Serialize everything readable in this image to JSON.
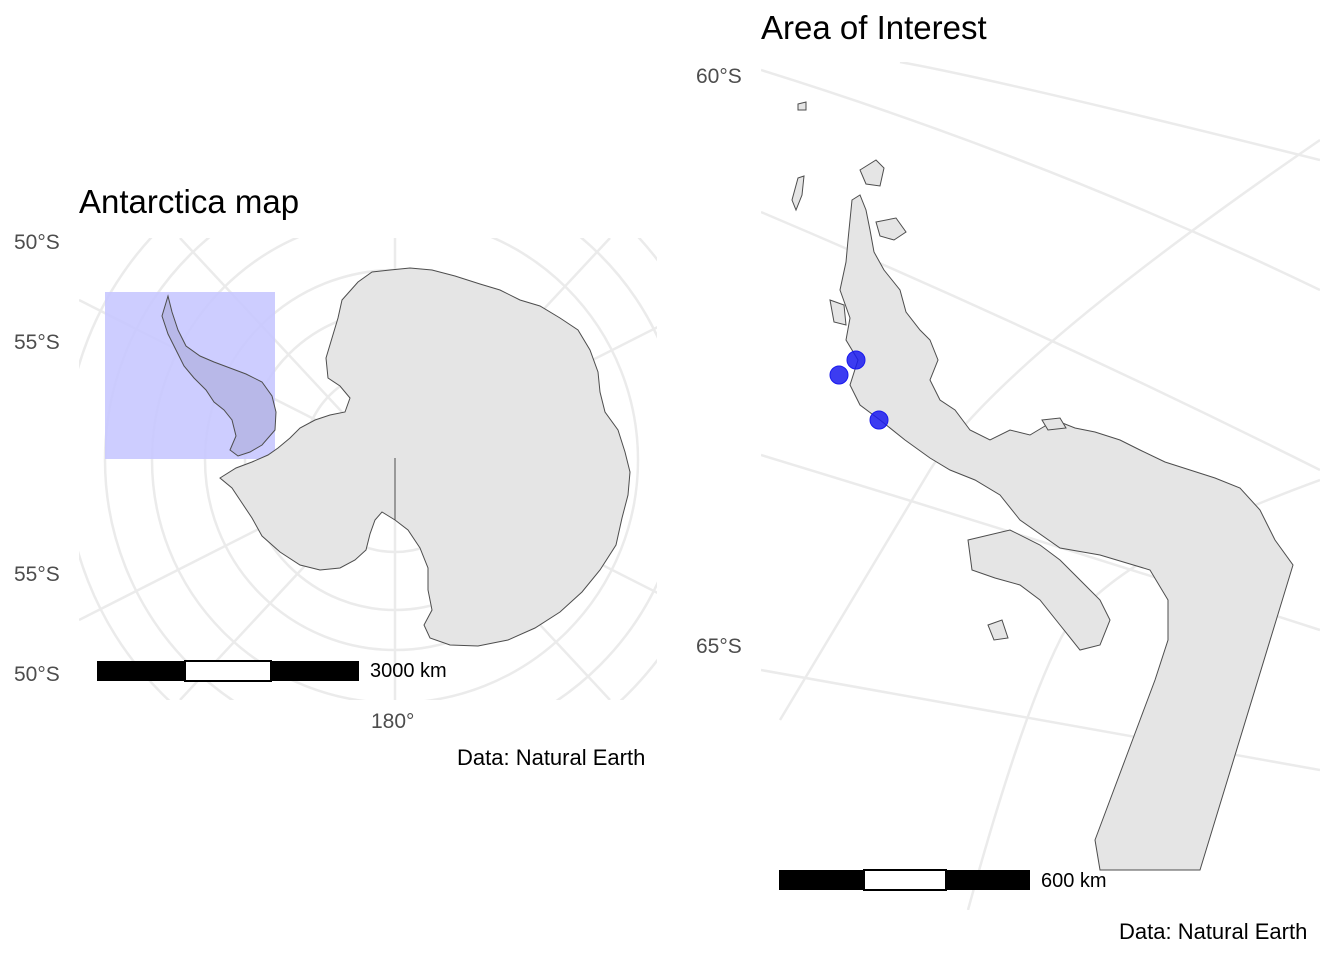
{
  "left_panel": {
    "title": "Antarctica map",
    "lat_labels": [
      "50°S",
      "55°S",
      "55°S",
      "50°S"
    ],
    "lon_label": "180°",
    "scale_bar_label": "3000 km",
    "caption": "Data: Natural Earth",
    "highlight_color": "#c8c8ff",
    "land_color": "#e5e5e5"
  },
  "right_panel": {
    "title": "Area of Interest",
    "lat_labels": [
      "60°S",
      "65°S"
    ],
    "scale_bar_label": "600 km",
    "caption": "Data: Natural Earth",
    "point_color": "#1a1aee",
    "point_count": 3
  },
  "chart_data": [
    {
      "type": "map",
      "title": "Antarctica map",
      "region": "Antarctica",
      "projection": "south polar stereographic",
      "graticule_lat_labels": [
        "50°S",
        "55°S",
        "55°S",
        "50°S"
      ],
      "graticule_lon_labels": [
        "180°"
      ],
      "highlight": "Antarctic Peninsula (area of interest box)",
      "scale_bar": "3000 km",
      "caption": "Data: Natural Earth"
    },
    {
      "type": "map",
      "title": "Area of Interest",
      "region": "Antarctic Peninsula",
      "graticule_lat_labels": [
        "60°S",
        "65°S"
      ],
      "points": 3,
      "scale_bar": "600 km",
      "caption": "Data: Natural Earth"
    }
  ]
}
